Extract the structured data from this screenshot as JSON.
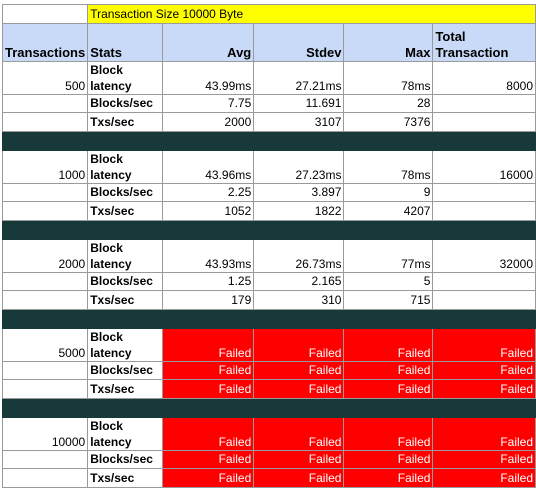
{
  "title": "Transaction Size 10000 Byte",
  "headers": {
    "transactions": "Transactions",
    "stats": "Stats",
    "avg": "Avg",
    "stdev": "Stdev",
    "max": "Max",
    "total_line1": "Total",
    "total_line2": "Transaction"
  },
  "stat_labels": {
    "block_line1": "Block",
    "block_line2": "latency",
    "blocks_sec": "Blocks/sec",
    "txs_sec": "Txs/sec"
  },
  "groups": [
    {
      "transactions": "500",
      "latency": {
        "avg": "43.99ms",
        "stdev": "27.21ms",
        "max": "78ms",
        "total": "8000"
      },
      "blocks": {
        "avg": "7.75",
        "stdev": "11.691",
        "max": "28"
      },
      "txs": {
        "avg": "2000",
        "stdev": "3107",
        "max": "7376"
      }
    },
    {
      "transactions": "1000",
      "latency": {
        "avg": "43.96ms",
        "stdev": "27.23ms",
        "max": "78ms",
        "total": "16000"
      },
      "blocks": {
        "avg": "2.25",
        "stdev": "3.897",
        "max": "9"
      },
      "txs": {
        "avg": "1052",
        "stdev": "1822",
        "max": "4207"
      }
    },
    {
      "transactions": "2000",
      "latency": {
        "avg": "43.93ms",
        "stdev": "26.73ms",
        "max": "77ms",
        "total": "32000"
      },
      "blocks": {
        "avg": "1.25",
        "stdev": "2.165",
        "max": "5"
      },
      "txs": {
        "avg": "179",
        "stdev": "310",
        "max": "715"
      }
    },
    {
      "transactions": "5000",
      "failed": "Failed"
    },
    {
      "transactions": "10000",
      "failed": "Failed"
    }
  ],
  "colors": {
    "title_bg": "#ffff00",
    "header_bg": "#c9daf8",
    "separator": "#17393a",
    "failed_bg": "#ff0000"
  }
}
